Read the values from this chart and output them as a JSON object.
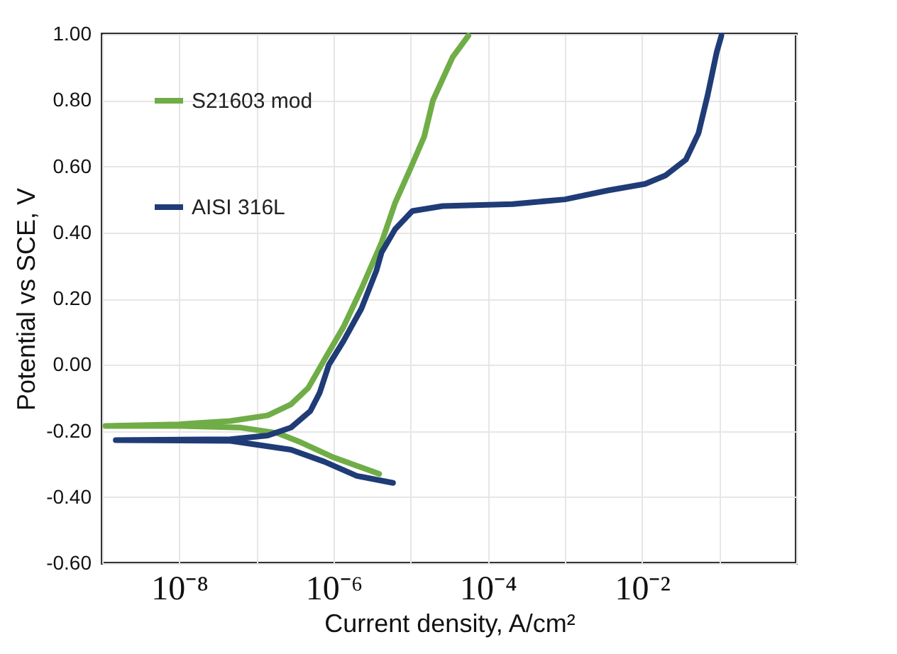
{
  "chart_data": {
    "type": "line",
    "xlabel": "Current density, A/cm²",
    "ylabel": "Potential vs SCE, V",
    "log": "x",
    "grid": true,
    "legend": "top left",
    "line_style": "solid",
    "marker": "none",
    "xlim": [
      1e-09,
      1
    ],
    "ylim": [
      -0.6,
      1.0
    ],
    "xticks": [
      {
        "value": 1e-09,
        "label": null
      },
      {
        "value": 1e-08,
        "label": "10⁻⁸"
      },
      {
        "value": 1e-07,
        "label": null
      },
      {
        "value": 1e-06,
        "label": "10⁻⁶"
      },
      {
        "value": 1e-05,
        "label": null
      },
      {
        "value": 0.0001,
        "label": "10⁻⁴"
      },
      {
        "value": 0.001,
        "label": null
      },
      {
        "value": 0.01,
        "label": "10⁻²"
      },
      {
        "value": 0.1,
        "label": null
      },
      {
        "value": 1,
        "label": null
      }
    ],
    "yticks": [
      {
        "value": -0.6,
        "label": "-0.60"
      },
      {
        "value": -0.4,
        "label": "-0.40"
      },
      {
        "value": -0.2,
        "label": "-0.20"
      },
      {
        "value": 0,
        "label": "0.00"
      },
      {
        "value": 0.2,
        "label": "0.20"
      },
      {
        "value": 0.4,
        "label": "0.40"
      },
      {
        "value": 0.6,
        "label": "0.60"
      },
      {
        "value": 0.8,
        "label": "0.80"
      },
      {
        "value": 1.0,
        "label": "1.00"
      }
    ],
    "series": [
      {
        "name": "S21603 mod",
        "color": "#70ad47",
        "x": [
          3.9e-06,
          1e-06,
          3.8e-07,
          1.9e-07,
          6.3e-08,
          1e-08,
          1.1e-09,
          1e-08,
          4.6e-08,
          1.4e-07,
          2.8e-07,
          4.7e-07,
          7.6e-07,
          1.35e-06,
          2.3e-06,
          4.2e-06,
          6.3e-06,
          9.8e-06,
          1.5e-05,
          1.95e-05,
          3.5e-05,
          5.6e-05
        ],
        "values": [
          -0.33,
          -0.28,
          -0.235,
          -0.207,
          -0.19,
          -0.185,
          -0.185,
          -0.18,
          -0.17,
          -0.153,
          -0.12,
          -0.07,
          0.015,
          0.115,
          0.23,
          0.37,
          0.49,
          0.59,
          0.69,
          0.8,
          0.93,
          0.995
        ]
      },
      {
        "name": "AISI 316L",
        "color": "#1f3c77",
        "x": [
          5.9e-06,
          2e-06,
          7.6e-07,
          2.8e-07,
          4.6e-08,
          1.5e-09,
          4.6e-08,
          1.4e-07,
          2.8e-07,
          5e-07,
          6.6e-07,
          8.7e-07,
          1.35e-06,
          2.3e-06,
          3.6e-06,
          4.2e-06,
          6.3e-06,
          1.05e-05,
          2.6e-05,
          0.00021,
          0.001,
          0.0036,
          0.011,
          0.02,
          0.037,
          0.054,
          0.071,
          0.093,
          0.107
        ],
        "values": [
          -0.357,
          -0.336,
          -0.293,
          -0.257,
          -0.23,
          -0.228,
          -0.225,
          -0.214,
          -0.19,
          -0.14,
          -0.085,
          0.0,
          0.072,
          0.17,
          0.285,
          0.34,
          0.41,
          0.465,
          0.48,
          0.486,
          0.5,
          0.527,
          0.547,
          0.572,
          0.62,
          0.7,
          0.815,
          0.945,
          0.995
        ]
      }
    ]
  }
}
